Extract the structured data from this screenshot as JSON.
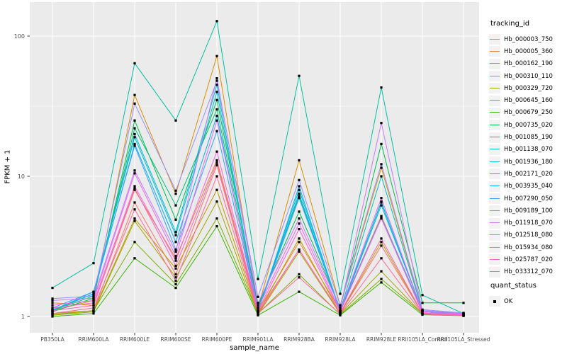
{
  "chart_data": {
    "type": "line",
    "title": "",
    "xlabel": "sample_name",
    "ylabel": "FPKM + 1",
    "y_scale": "log10",
    "y_ticks": [
      1,
      10,
      100
    ],
    "y_tick_labels": [
      "1",
      "10",
      "100"
    ],
    "y_minor_ticks": [
      3.162,
      31.62
    ],
    "ylim": [
      0.93,
      175
    ],
    "grid": "major-and-minor-white-on-gray",
    "legend_position": "right",
    "categories": [
      "PB350LA",
      "RRIM600LA",
      "RRIM600LE",
      "RRIM600SE",
      "RRIM600PE",
      "RRIM901LA",
      "RRIM928BA",
      "RRIM928LA",
      "RRIM928LE",
      "RRII105LA_Control",
      "RRII105LA_Stressed"
    ],
    "legend_title": "tracking_id",
    "quant_legend": {
      "title": "quant_status",
      "items": [
        {
          "label": "OK",
          "marker": "black-square"
        }
      ]
    },
    "marker": "black-square",
    "series": [
      {
        "name": "Hb_000003_750",
        "color": "#F8766D",
        "values": [
          1.05,
          1.1,
          6.5,
          2.0,
          12.0,
          1.05,
          3.0,
          1.05,
          3.2,
          1.05,
          1.02
        ]
      },
      {
        "name": "Hb_000005_360",
        "color": "#EA8331",
        "values": [
          1.25,
          1.2,
          8.0,
          2.6,
          13.0,
          1.1,
          3.4,
          1.1,
          5.2,
          1.08,
          1.03
        ]
      },
      {
        "name": "Hb_000162_190",
        "color": "#D89000",
        "values": [
          1.1,
          1.3,
          38.0,
          7.5,
          72.0,
          1.15,
          13.0,
          1.2,
          11.5,
          1.1,
          1.04
        ]
      },
      {
        "name": "Hb_000310_110",
        "color": "#C09B00",
        "values": [
          1.05,
          1.1,
          5.0,
          2.2,
          8.0,
          1.05,
          3.6,
          1.05,
          3.4,
          1.05,
          1.02
        ]
      },
      {
        "name": "Hb_000329_720",
        "color": "#A3A500",
        "values": [
          1.02,
          1.08,
          4.8,
          1.9,
          6.6,
          1.03,
          2.9,
          1.04,
          2.1,
          1.04,
          1.02
        ]
      },
      {
        "name": "Hb_000645_160",
        "color": "#7CAE00",
        "values": [
          1.03,
          1.1,
          3.4,
          1.7,
          5.0,
          1.05,
          2.0,
          1.03,
          1.85,
          1.05,
          1.02
        ]
      },
      {
        "name": "Hb_000679_250",
        "color": "#39B600",
        "values": [
          1.0,
          1.05,
          2.6,
          1.6,
          4.4,
          1.02,
          1.5,
          1.02,
          1.75,
          1.03,
          1.01
        ]
      },
      {
        "name": "Hb_000735_020",
        "color": "#00BB4E",
        "values": [
          1.08,
          1.35,
          25.0,
          4.9,
          35.0,
          1.2,
          5.6,
          1.15,
          17.0,
          1.25,
          1.25
        ]
      },
      {
        "name": "Hb_001085_190",
        "color": "#00BF7D",
        "values": [
          1.1,
          1.4,
          22.0,
          6.2,
          30.0,
          1.15,
          7.2,
          1.1,
          6.5,
          1.1,
          1.05
        ]
      },
      {
        "name": "Hb_001138_070",
        "color": "#00C1A3",
        "values": [
          1.6,
          2.4,
          64.0,
          25.0,
          128.0,
          1.85,
          52.0,
          1.45,
          43.0,
          1.42,
          1.05
        ]
      },
      {
        "name": "Hb_001936_180",
        "color": "#00BFC4",
        "values": [
          1.12,
          1.45,
          20.0,
          4.0,
          45.0,
          1.1,
          8.0,
          1.1,
          10.0,
          1.1,
          1.04
        ]
      },
      {
        "name": "Hb_002171_020",
        "color": "#00BAE0",
        "values": [
          1.1,
          1.5,
          19.0,
          3.8,
          40.0,
          1.1,
          7.5,
          1.08,
          6.6,
          1.08,
          1.03
        ]
      },
      {
        "name": "Hb_003935_040",
        "color": "#00B0F6",
        "values": [
          1.1,
          1.45,
          17.0,
          3.4,
          27.0,
          1.08,
          8.5,
          1.08,
          6.2,
          1.1,
          1.04
        ]
      },
      {
        "name": "Hb_007290_050",
        "color": "#35A2FF",
        "values": [
          1.15,
          1.5,
          16.5,
          3.0,
          21.0,
          1.1,
          7.0,
          1.1,
          5.1,
          1.1,
          1.05
        ]
      },
      {
        "name": "Hb_009189_100",
        "color": "#9590FF",
        "values": [
          1.34,
          1.4,
          33.0,
          7.9,
          48.0,
          1.38,
          9.4,
          1.2,
          12.2,
          1.12,
          1.06
        ]
      },
      {
        "name": "Hb_011918_070",
        "color": "#C77CFF",
        "values": [
          1.3,
          1.35,
          11.0,
          2.9,
          50.0,
          1.25,
          5.0,
          1.15,
          24.0,
          1.1,
          1.05
        ]
      },
      {
        "name": "Hb_012518_080",
        "color": "#E76BF3",
        "values": [
          1.2,
          1.3,
          10.5,
          2.7,
          25.0,
          1.15,
          4.6,
          1.1,
          7.0,
          1.08,
          1.04
        ]
      },
      {
        "name": "Hb_015934_080",
        "color": "#FA62DB",
        "values": [
          1.15,
          1.25,
          8.5,
          2.5,
          15.0,
          1.1,
          4.2,
          1.08,
          5.0,
          1.06,
          1.03
        ]
      },
      {
        "name": "Hb_025787_020",
        "color": "#FF62BC",
        "values": [
          1.1,
          1.2,
          8.2,
          2.3,
          12.5,
          1.08,
          3.0,
          1.06,
          3.6,
          1.05,
          1.02
        ]
      },
      {
        "name": "Hb_033312_070",
        "color": "#FF6A98",
        "values": [
          1.05,
          1.15,
          5.8,
          1.8,
          10.0,
          1.05,
          1.9,
          1.04,
          2.6,
          1.04,
          1.01
        ]
      }
    ]
  },
  "colors": {
    "panel_background": "#EBEBEB",
    "gridline": "#FFFFFF",
    "tick_label": "#4D4D4D",
    "tick_mark": "#333333",
    "marker": "#000000",
    "legend_key_background": "#F2F2F2"
  }
}
